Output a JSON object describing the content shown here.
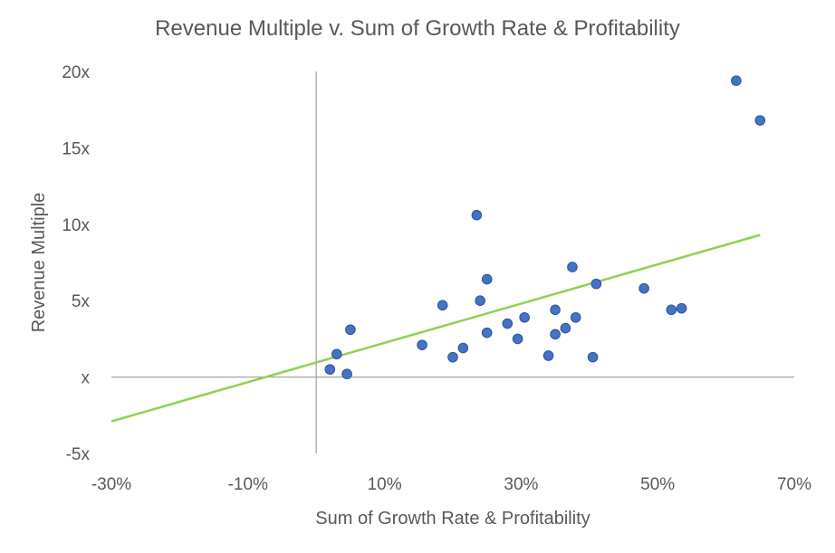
{
  "chart_data": {
    "type": "scatter",
    "title": "Revenue Multiple v. Sum of Growth Rate & Profitability",
    "xlabel": "Sum of Growth Rate & Profitability",
    "ylabel": "Revenue Multiple",
    "xlim": [
      -0.3,
      0.7
    ],
    "ylim": [
      -5,
      20
    ],
    "x_ticks": [
      -0.3,
      -0.1,
      0.1,
      0.3,
      0.5,
      0.7
    ],
    "x_tick_labels": [
      "-30%",
      "-10%",
      "10%",
      "30%",
      "50%",
      "70%"
    ],
    "y_ticks": [
      20,
      15,
      10,
      5,
      0,
      -5
    ],
    "y_tick_labels": [
      "20x",
      "15x",
      "10x",
      "5x",
      "x",
      "-5x"
    ],
    "grid": false,
    "colors": {
      "points": "#4472c4",
      "point_edge": "#2f5597",
      "trendline": "#92d050",
      "axis": "#a6a6a6",
      "text": "#595959"
    },
    "series": [
      {
        "x": [
          0.02,
          0.03,
          0.045,
          0.05,
          0.155,
          0.185,
          0.2,
          0.215,
          0.235,
          0.24,
          0.25,
          0.25,
          0.28,
          0.295,
          0.305,
          0.34,
          0.35,
          0.35,
          0.365,
          0.375,
          0.38,
          0.405,
          0.41,
          0.48,
          0.52,
          0.535,
          0.615,
          0.65
        ],
        "y": [
          0.5,
          1.5,
          0.2,
          3.1,
          2.1,
          4.7,
          1.3,
          1.9,
          10.6,
          5.0,
          6.4,
          2.9,
          3.5,
          2.5,
          3.9,
          1.4,
          4.4,
          2.8,
          3.2,
          7.2,
          3.9,
          1.3,
          6.1,
          5.8,
          4.4,
          4.5,
          19.4,
          16.8
        ]
      }
    ],
    "trendline": {
      "x": [
        -0.3,
        0.65
      ],
      "y": [
        -2.9,
        9.3
      ]
    }
  }
}
